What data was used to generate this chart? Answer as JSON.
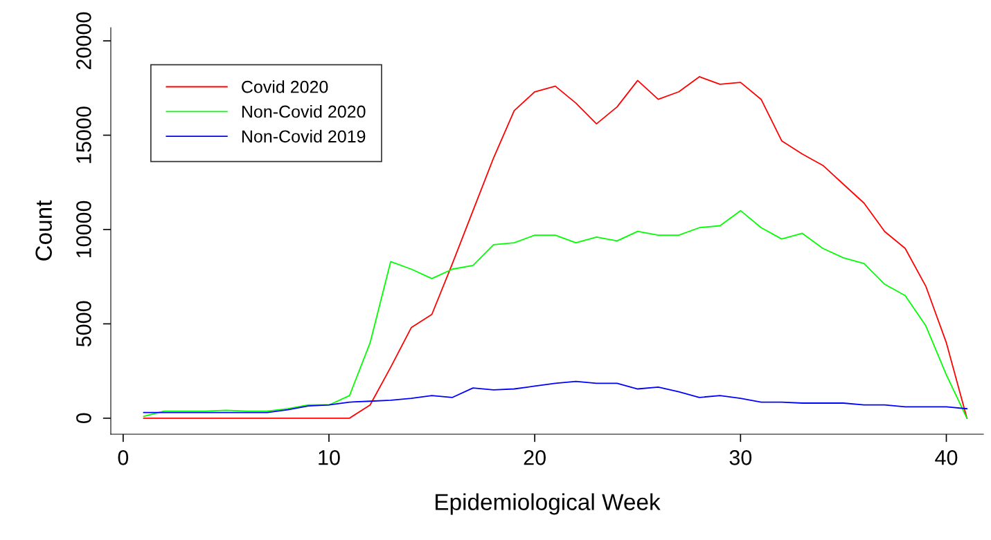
{
  "chart_data": {
    "type": "line",
    "xlabel": "Epidemiological Week",
    "ylabel": "Count",
    "x": [
      1,
      2,
      3,
      4,
      5,
      6,
      7,
      8,
      9,
      10,
      11,
      12,
      13,
      14,
      15,
      16,
      17,
      18,
      19,
      20,
      21,
      22,
      23,
      24,
      25,
      26,
      27,
      28,
      29,
      30,
      31,
      32,
      33,
      34,
      35,
      36,
      37,
      38,
      39,
      40,
      41
    ],
    "series": [
      {
        "name": "Covid 2020",
        "color": "#ff0000",
        "values": [
          0,
          0,
          0,
          0,
          0,
          0,
          0,
          0,
          0,
          0,
          0,
          700,
          2700,
          4800,
          5500,
          8200,
          11000,
          13800,
          16300,
          17300,
          17600,
          16700,
          15600,
          16500,
          17900,
          16900,
          17300,
          18100,
          17700,
          17800,
          16900,
          14700,
          14000,
          13400,
          12400,
          11400,
          9900,
          9000,
          7000,
          4000,
          0
        ]
      },
      {
        "name": "Non-Covid 2020",
        "color": "#00ff00",
        "values": [
          100,
          370,
          370,
          370,
          420,
          370,
          370,
          500,
          700,
          700,
          1200,
          4000,
          8300,
          7900,
          7400,
          7900,
          8100,
          9200,
          9300,
          9700,
          9700,
          9300,
          9600,
          9400,
          9900,
          9700,
          9700,
          10100,
          10200,
          11000,
          10100,
          9500,
          9800,
          9000,
          8500,
          8200,
          7100,
          6500,
          4900,
          2300,
          0
        ]
      },
      {
        "name": "Non-Covid 2019",
        "color": "#0000ff",
        "values": [
          300,
          300,
          300,
          300,
          300,
          300,
          300,
          450,
          650,
          700,
          850,
          900,
          950,
          1050,
          1200,
          1100,
          1600,
          1500,
          1550,
          1700,
          1850,
          1950,
          1850,
          1850,
          1550,
          1650,
          1400,
          1100,
          1200,
          1050,
          850,
          850,
          800,
          800,
          800,
          700,
          700,
          600,
          600,
          600,
          500
        ]
      }
    ],
    "xlim": [
      -0.6,
      41.8
    ],
    "ylim": [
      -850,
      20700
    ],
    "xticks": [
      0,
      10,
      20,
      30,
      40
    ],
    "yticks": [
      0,
      5000,
      10000,
      15000,
      20000
    ],
    "grid": false,
    "legend": "top left",
    "marker": "none",
    "line_style": "solid"
  }
}
